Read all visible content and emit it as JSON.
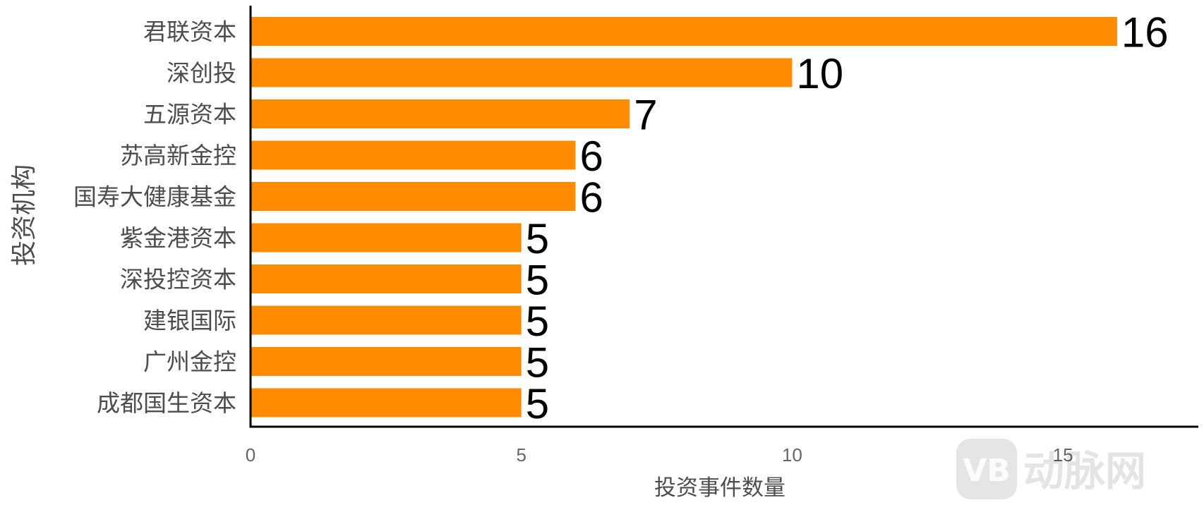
{
  "chart_data": {
    "type": "bar",
    "orientation": "horizontal",
    "categories": [
      "君联资本",
      "深创投",
      "五源资本",
      "苏高新金控",
      "国寿大健康基金",
      "紫金港资本",
      "深投控资本",
      "建银国际",
      "广州金控",
      "成都国生资本"
    ],
    "values": [
      16,
      10,
      7,
      6,
      6,
      5,
      5,
      5,
      5,
      5
    ],
    "xlabel": "投资事件数量",
    "ylabel": "投资机构",
    "xlim": [
      0,
      17.5
    ],
    "xticks": [
      0,
      5,
      10,
      15
    ],
    "bar_color": "#FF8C00",
    "grid": false,
    "data_labels": true
  },
  "watermark": {
    "text": "动脉网",
    "logo_text": "VB"
  }
}
